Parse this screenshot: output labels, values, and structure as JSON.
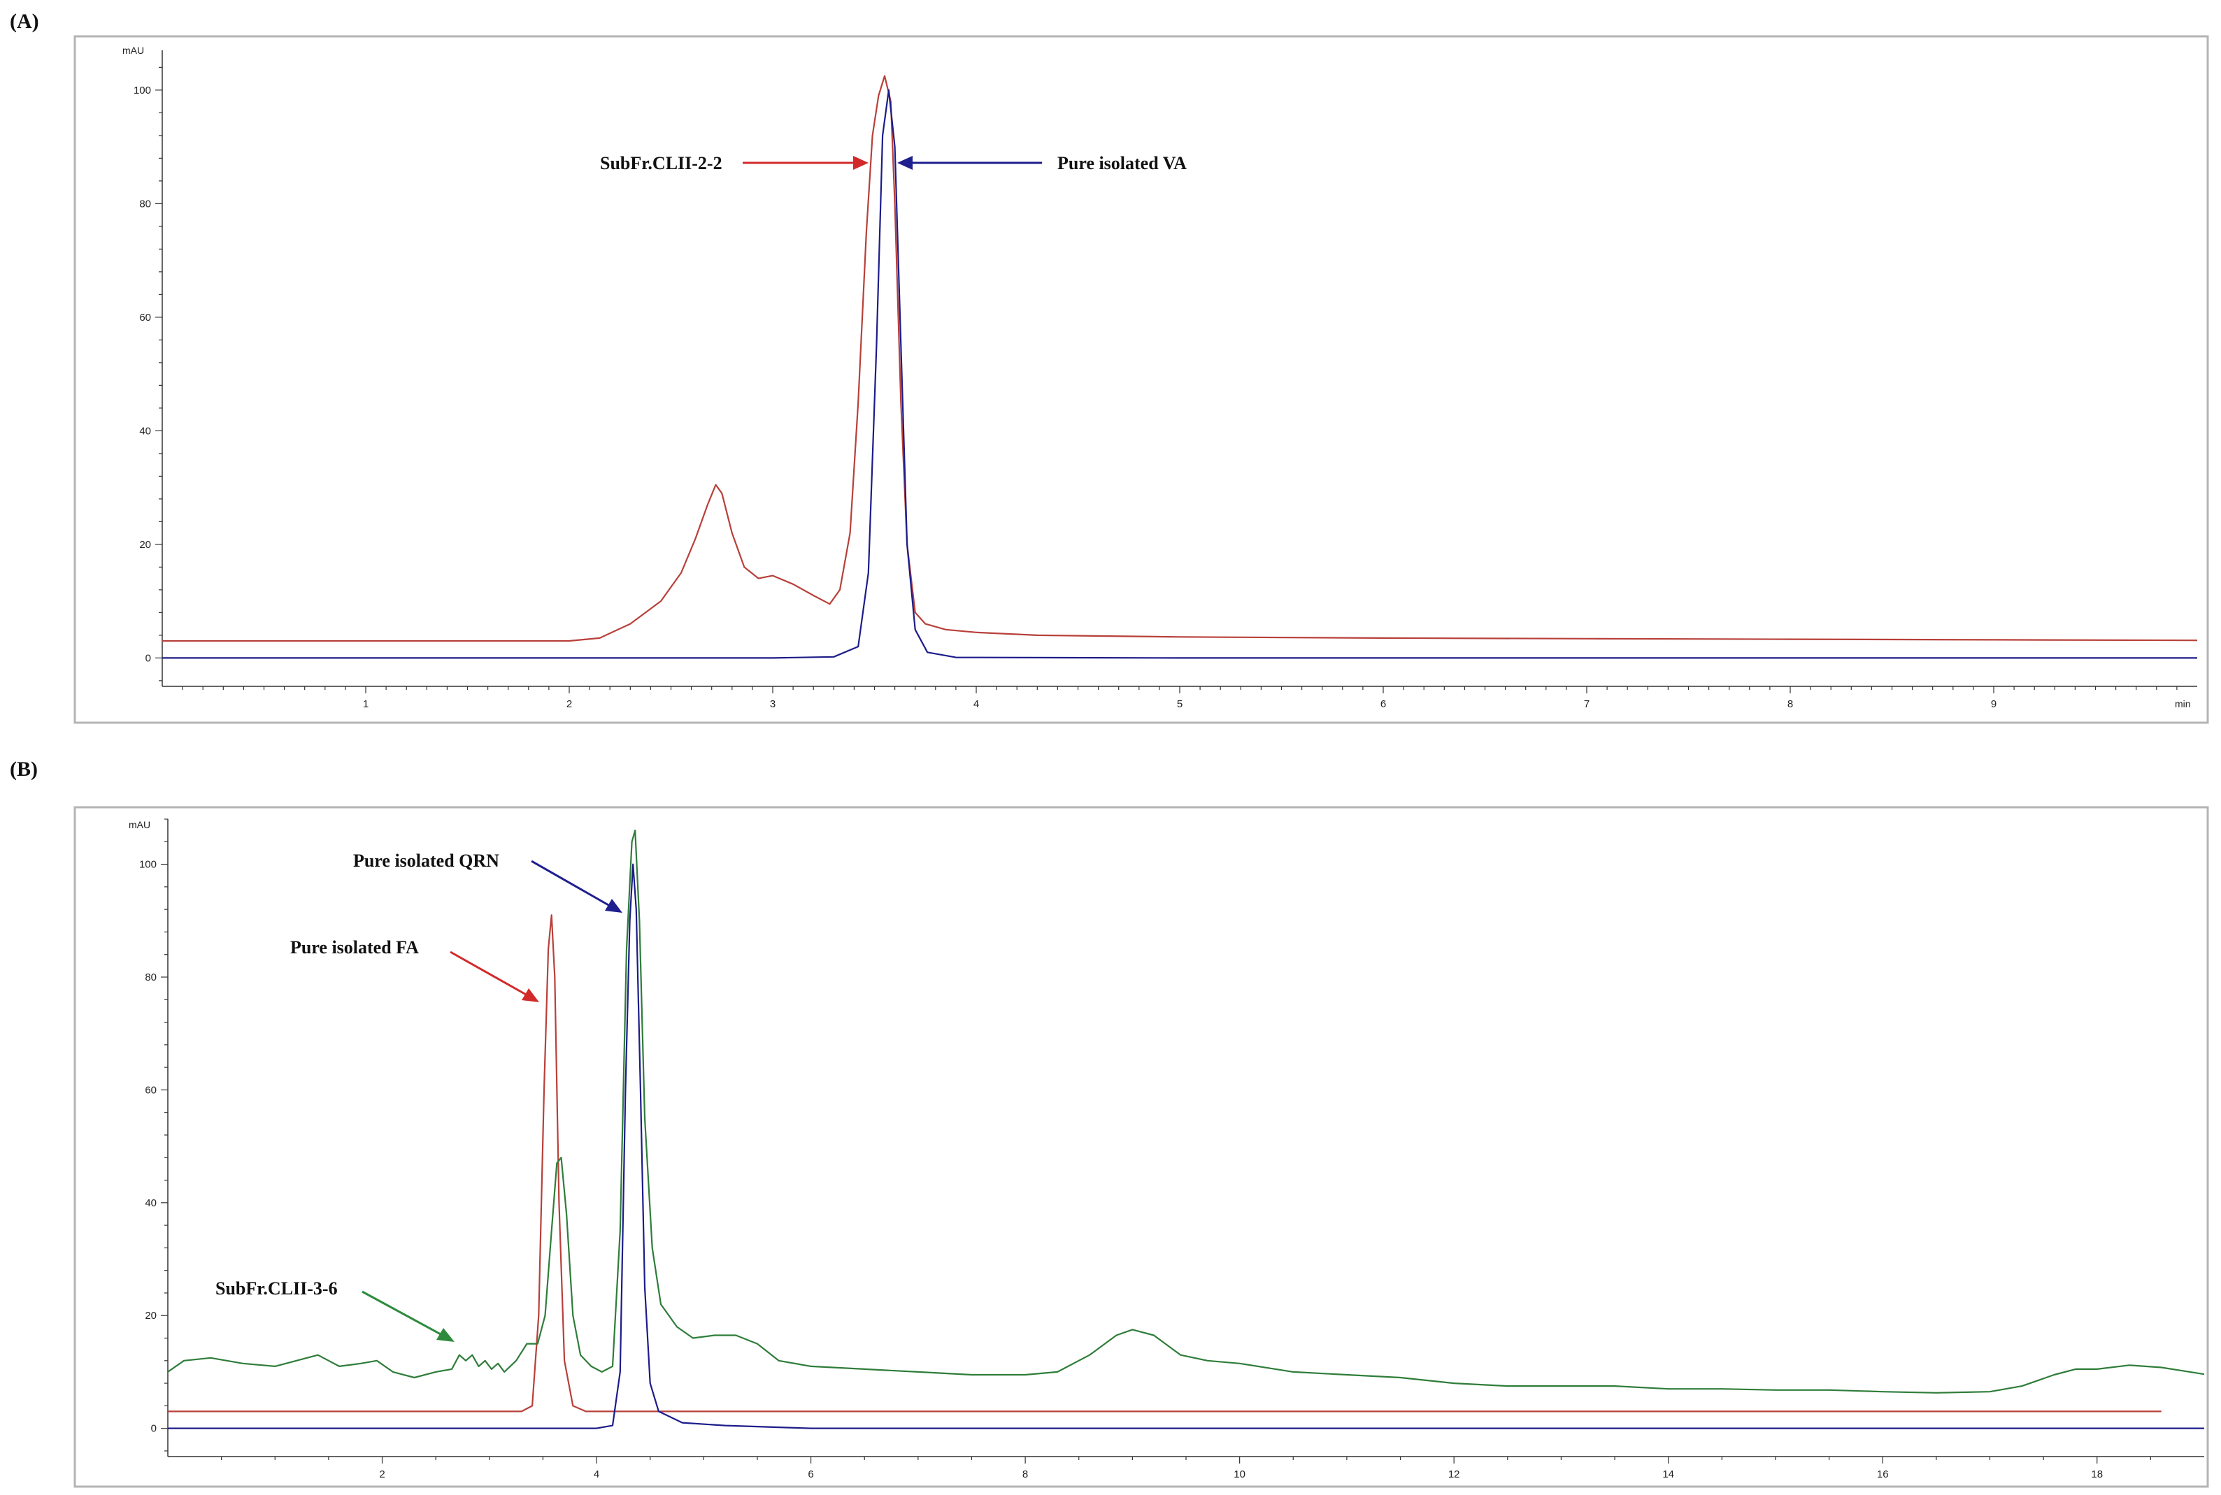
{
  "colors": {
    "red": "#d22a2a",
    "blue": "#1f1f8f",
    "green": "#2e8b3e",
    "darkred_trace": "#b8403a",
    "darkblue_trace": "#1c1c8a",
    "green_trace": "#2f7d3a"
  },
  "chart_data": [
    {
      "panel": "(A)",
      "type": "line",
      "xunit": "min",
      "yunit": "mAU",
      "xlim": [
        0,
        10
      ],
      "ylim": [
        -5,
        107
      ],
      "xticks": [
        1,
        2,
        3,
        4,
        5,
        6,
        7,
        8,
        9
      ],
      "yticks": [
        0,
        20,
        40,
        60,
        80,
        100
      ],
      "series": [
        {
          "name": "SubFr.CLII-2-2",
          "color": "#b8403a",
          "x": [
            0,
            0.5,
            1.0,
            1.5,
            2.0,
            2.15,
            2.3,
            2.45,
            2.55,
            2.62,
            2.68,
            2.72,
            2.75,
            2.8,
            2.86,
            2.93,
            3.0,
            3.1,
            3.2,
            3.28,
            3.33,
            3.38,
            3.42,
            3.46,
            3.49,
            3.52,
            3.55,
            3.58,
            3.6,
            3.63,
            3.66,
            3.7,
            3.75,
            3.85,
            4.0,
            4.3,
            5.0,
            6.0,
            7.0,
            8.0,
            9.0,
            10.0
          ],
          "y": [
            3,
            3,
            3,
            3,
            3,
            3.5,
            6,
            10,
            15,
            21,
            27,
            30.5,
            29,
            22,
            16,
            14,
            14.5,
            13,
            11,
            9.5,
            12,
            22,
            45,
            75,
            92,
            99,
            102.5,
            98,
            80,
            45,
            20,
            8,
            6,
            5,
            4.5,
            4,
            3.7,
            3.5,
            3.4,
            3.3,
            3.2,
            3.1
          ]
        },
        {
          "name": "Pure isolated VA",
          "color": "#1c1c8a",
          "x": [
            0,
            1,
            2,
            3,
            3.3,
            3.42,
            3.47,
            3.51,
            3.54,
            3.57,
            3.6,
            3.63,
            3.66,
            3.7,
            3.76,
            3.9,
            5,
            6,
            7,
            8,
            9,
            10
          ],
          "y": [
            0,
            0,
            0,
            0,
            0.2,
            2,
            15,
            55,
            92,
            100,
            90,
            55,
            20,
            5,
            1,
            0.1,
            0,
            0,
            0,
            0,
            0,
            0
          ]
        }
      ],
      "annotations": [
        {
          "text": "SubFr.CLII-2-2",
          "color": "#d22a2a"
        },
        {
          "text": "Pure isolated VA",
          "color": "#1f1f8f"
        }
      ]
    },
    {
      "panel": "(B)",
      "type": "line",
      "xunit": "min",
      "yunit": "mAU",
      "xlim": [
        0,
        19
      ],
      "ylim": [
        -5,
        108
      ],
      "xticks": [
        2,
        4,
        6,
        8,
        10,
        12,
        14,
        16,
        18
      ],
      "yticks": [
        0,
        20,
        40,
        60,
        80,
        100
      ],
      "series": [
        {
          "name": "Pure isolated FA",
          "color": "#b8403a",
          "x": [
            0,
            1,
            2,
            3,
            3.3,
            3.4,
            3.46,
            3.51,
            3.55,
            3.58,
            3.61,
            3.65,
            3.7,
            3.78,
            3.9,
            5,
            8,
            12,
            16,
            18.6
          ],
          "y": [
            3,
            3,
            3,
            3,
            3,
            4,
            20,
            60,
            85,
            91,
            80,
            40,
            12,
            4,
            3,
            3,
            3,
            3,
            3,
            3
          ]
        },
        {
          "name": "Pure isolated QRN",
          "color": "#1c1c8a",
          "x": [
            0,
            2,
            4,
            4.15,
            4.22,
            4.27,
            4.31,
            4.34,
            4.37,
            4.41,
            4.45,
            4.5,
            4.58,
            4.8,
            5.2,
            6,
            10,
            14,
            19
          ],
          "y": [
            0,
            0,
            0,
            0.5,
            10,
            60,
            90,
            100,
            92,
            60,
            25,
            8,
            3,
            1,
            0.5,
            0,
            0,
            0,
            0
          ],
          "peak_value": 100
        },
        {
          "name": "SubFr.CLII-3-6",
          "color": "#2f7d3a",
          "x": [
            0,
            0.15,
            0.4,
            0.7,
            1.0,
            1.2,
            1.4,
            1.6,
            1.8,
            1.95,
            2.1,
            2.3,
            2.5,
            2.65,
            2.72,
            2.78,
            2.84,
            2.9,
            2.96,
            3.02,
            3.08,
            3.14,
            3.25,
            3.35,
            3.45,
            3.52,
            3.58,
            3.63,
            3.67,
            3.72,
            3.78,
            3.85,
            3.95,
            4.05,
            4.15,
            4.22,
            4.28,
            4.33,
            4.36,
            4.4,
            4.45,
            4.52,
            4.6,
            4.75,
            4.9,
            5.1,
            5.3,
            5.5,
            5.7,
            6.0,
            6.5,
            7.0,
            7.5,
            8.0,
            8.3,
            8.6,
            8.85,
            9.0,
            9.2,
            9.45,
            9.7,
            10.0,
            10.5,
            11.0,
            11.5,
            12.0,
            12.5,
            13.0,
            13.5,
            14.0,
            14.5,
            15.0,
            15.5,
            16.0,
            16.5,
            17.0,
            17.3,
            17.6,
            17.8,
            18.0,
            18.3,
            18.6,
            18.8,
            19.0
          ],
          "y": [
            10,
            12,
            12.5,
            11.5,
            11,
            12,
            13,
            11,
            11.5,
            12,
            10,
            9,
            10,
            10.5,
            13,
            12,
            13,
            11,
            12,
            10.5,
            11.5,
            10,
            12,
            15,
            15,
            20,
            35,
            47,
            48,
            38,
            20,
            13,
            11,
            10,
            11,
            35,
            85,
            104,
            106,
            90,
            55,
            32,
            22,
            18,
            16,
            16.5,
            16.5,
            15,
            12,
            11,
            10.5,
            10,
            9.5,
            9.5,
            10,
            13,
            16.5,
            17.5,
            16.5,
            13,
            12,
            11.5,
            10,
            9.5,
            9,
            8,
            7.5,
            7.5,
            7.5,
            7,
            7,
            6.8,
            6.8,
            6.5,
            6.3,
            6.5,
            7.5,
            9.5,
            10.5,
            10.5,
            11.2,
            10.8,
            10.2,
            9.6
          ]
        }
      ],
      "annotations": [
        {
          "text": "Pure isolated QRN",
          "color": "#1f1f8f"
        },
        {
          "text": "Pure isolated FA",
          "color": "#d22a2a"
        },
        {
          "text": "SubFr.CLII-3-6",
          "color": "#2e8b3e"
        }
      ]
    }
  ]
}
